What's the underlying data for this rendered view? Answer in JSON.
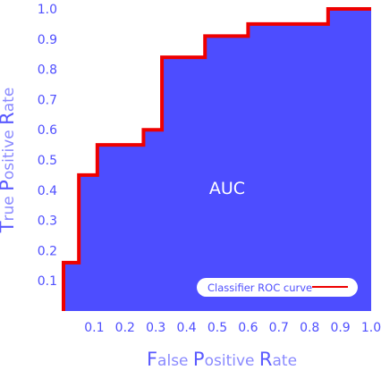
{
  "chart_data": {
    "type": "area",
    "title": "",
    "annotation": "AUC",
    "xlabel": {
      "parts": [
        {
          "text": "F",
          "cap": true
        },
        {
          "text": "alse ",
          "cap": false
        },
        {
          "text": "P",
          "cap": true
        },
        {
          "text": "ositive ",
          "cap": false
        },
        {
          "text": "R",
          "cap": true
        },
        {
          "text": "ate",
          "cap": false
        }
      ]
    },
    "ylabel": {
      "parts": [
        {
          "text": "T",
          "cap": true
        },
        {
          "text": "rue ",
          "cap": false
        },
        {
          "text": "P",
          "cap": true
        },
        {
          "text": "ositive ",
          "cap": false
        },
        {
          "text": "R",
          "cap": true
        },
        {
          "text": "ate",
          "cap": false
        }
      ]
    },
    "xlim": [
      0,
      1
    ],
    "ylim": [
      0,
      1
    ],
    "x_ticks": [
      "0.1",
      "0.2",
      "0.3",
      "0.4",
      "0.5",
      "0.6",
      "0.7",
      "0.8",
      "0.9",
      "1.0"
    ],
    "y_ticks": [
      "0.1",
      "0.2",
      "0.3",
      "0.4",
      "0.5",
      "0.6",
      "0.7",
      "0.8",
      "0.9",
      "1.0"
    ],
    "grid": false,
    "legend": {
      "position": "bottom-right"
    },
    "series": [
      {
        "name": "Classifier ROC curve",
        "step": true,
        "x": [
          0.0,
          0.0,
          0.05,
          0.05,
          0.11,
          0.11,
          0.26,
          0.26,
          0.32,
          0.32,
          0.46,
          0.46,
          0.6,
          0.6,
          0.86,
          0.86,
          1.0
        ],
        "y": [
          0.0,
          0.16,
          0.16,
          0.45,
          0.45,
          0.55,
          0.55,
          0.6,
          0.6,
          0.84,
          0.84,
          0.91,
          0.91,
          0.95,
          0.95,
          1.0,
          1.0
        ]
      }
    ],
    "colors": {
      "fill": "#4d4dff",
      "curve": "#ee0000",
      "tick": "#4f4fff",
      "label": "#8a8aff"
    }
  }
}
